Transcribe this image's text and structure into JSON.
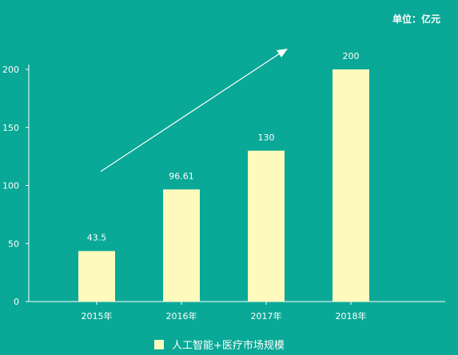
{
  "unit_label": "单位：亿元",
  "chart_data": {
    "type": "bar",
    "categories": [
      "2015年",
      "2016年",
      "2017年",
      "2018年"
    ],
    "series": [
      {
        "name": "人工智能+医疗市场规模",
        "values": [
          43.5,
          96.61,
          130,
          200
        ]
      }
    ],
    "value_labels": [
      "43.5",
      "96.61",
      "130",
      "200"
    ],
    "y_ticks": [
      0,
      50,
      100,
      150,
      200
    ],
    "ylim": [
      0,
      200
    ],
    "title": "",
    "xlabel": "",
    "ylabel": "",
    "grid": false,
    "legend_position": "bottom",
    "trend_arrow": true,
    "colors": {
      "background": "#0aa896",
      "bar": "#fef9bd",
      "axis": "#ffffff",
      "text": "#ffffff"
    }
  }
}
